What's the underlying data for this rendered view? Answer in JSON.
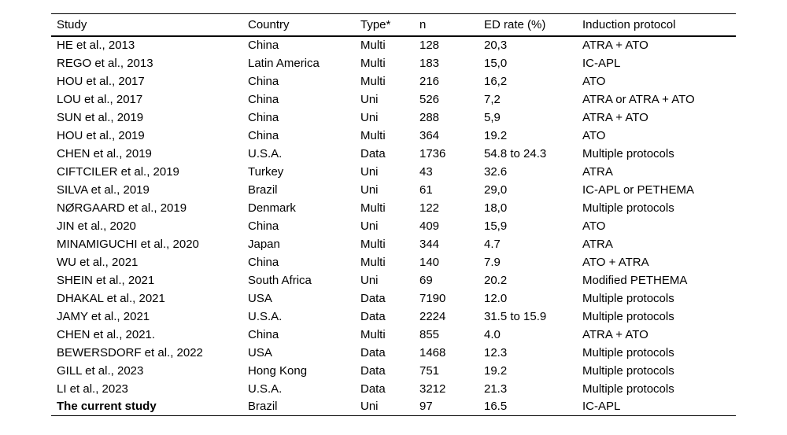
{
  "table": {
    "columns": [
      "Study",
      "Country",
      "Type*",
      "n",
      "ED rate (%)",
      "Induction protocol"
    ],
    "rows": [
      {
        "study": "HE et al., 2013",
        "country": "China",
        "type": "Multi",
        "n": "128",
        "ed_rate": "20,3",
        "protocol": "ATRA + ATO",
        "highlight": false
      },
      {
        "study": "REGO et al., 2013",
        "country": "Latin America",
        "type": "Multi",
        "n": "183",
        "ed_rate": "15,0",
        "protocol": "IC-APL",
        "highlight": false
      },
      {
        "study": "HOU et al., 2017",
        "country": "China",
        "type": "Multi",
        "n": "216",
        "ed_rate": "16,2",
        "protocol": "ATO",
        "highlight": false
      },
      {
        "study": "LOU et al., 2017",
        "country": "China",
        "type": "Uni",
        "n": "526",
        "ed_rate": "7,2",
        "protocol": "ATRA or ATRA + ATO",
        "highlight": false
      },
      {
        "study": "SUN et al., 2019",
        "country": "China",
        "type": "Uni",
        "n": "288",
        "ed_rate": "5,9",
        "protocol": "ATRA + ATO",
        "highlight": false
      },
      {
        "study": "HOU et al., 2019",
        "country": "China",
        "type": "Multi",
        "n": "364",
        "ed_rate": "19.2",
        "protocol": "ATO",
        "highlight": false
      },
      {
        "study": "CHEN et al., 2019",
        "country": "U.S.A.",
        "type": "Data",
        "n": "1736",
        "ed_rate": "54.8 to 24.3",
        "protocol": "Multiple protocols",
        "highlight": false
      },
      {
        "study": "CIFTCILER et al., 2019",
        "country": "Turkey",
        "type": "Uni",
        "n": "43",
        "ed_rate": "32.6",
        "protocol": "ATRA",
        "highlight": false
      },
      {
        "study": "SILVA et al., 2019",
        "country": "Brazil",
        "type": "Uni",
        "n": "61",
        "ed_rate": "29,0",
        "protocol": "IC-APL or PETHEMA",
        "highlight": false
      },
      {
        "study": "NØRGAARD et al., 2019",
        "country": "Denmark",
        "type": "Multi",
        "n": "122",
        "ed_rate": "18,0",
        "protocol": "Multiple protocols",
        "highlight": false
      },
      {
        "study": "JIN et al., 2020",
        "country": "China",
        "type": "Uni",
        "n": "409",
        "ed_rate": "15,9",
        "protocol": "ATO",
        "highlight": false
      },
      {
        "study": "MINAMIGUCHI et al., 2020",
        "country": "Japan",
        "type": "Multi",
        "n": "344",
        "ed_rate": "4.7",
        "protocol": "ATRA",
        "highlight": false
      },
      {
        "study": "WU et al., 2021",
        "country": "China",
        "type": "Multi",
        "n": "140",
        "ed_rate": "7.9",
        "protocol": "ATO + ATRA",
        "highlight": false
      },
      {
        "study": "SHEIN et al., 2021",
        "country": "South Africa",
        "type": "Uni",
        "n": "69",
        "ed_rate": "20.2",
        "protocol": "Modified PETHEMA",
        "highlight": false
      },
      {
        "study": "DHAKAL et al., 2021",
        "country": "USA",
        "type": "Data",
        "n": "7190",
        "ed_rate": "12.0",
        "protocol": "Multiple protocols",
        "highlight": false
      },
      {
        "study": "JAMY et al., 2021",
        "country": "U.S.A.",
        "type": "Data",
        "n": "2224",
        "ed_rate": "31.5 to 15.9",
        "protocol": "Multiple protocols",
        "highlight": false
      },
      {
        "study": "CHEN et al., 2021.",
        "country": "China",
        "type": "Multi",
        "n": "855",
        "ed_rate": "4.0",
        "protocol": "ATRA + ATO",
        "highlight": false
      },
      {
        "study": "BEWERSDORF et al., 2022",
        "country": "USA",
        "type": "Data",
        "n": "1468",
        "ed_rate": "12.3",
        "protocol": "Multiple protocols",
        "highlight": false
      },
      {
        "study": "GILL et al., 2023",
        "country": "Hong Kong",
        "type": "Data",
        "n": "751",
        "ed_rate": "19.2",
        "protocol": "Multiple protocols",
        "highlight": false
      },
      {
        "study": "LI et al., 2023",
        "country": "U.S.A.",
        "type": "Data",
        "n": "3212",
        "ed_rate": "21.3",
        "protocol": "Multiple protocols",
        "highlight": false
      },
      {
        "study": "The current study",
        "country": "Brazil",
        "type": "Uni",
        "n": "97",
        "ed_rate": "16.5",
        "protocol": "IC-APL",
        "highlight": true
      }
    ]
  }
}
